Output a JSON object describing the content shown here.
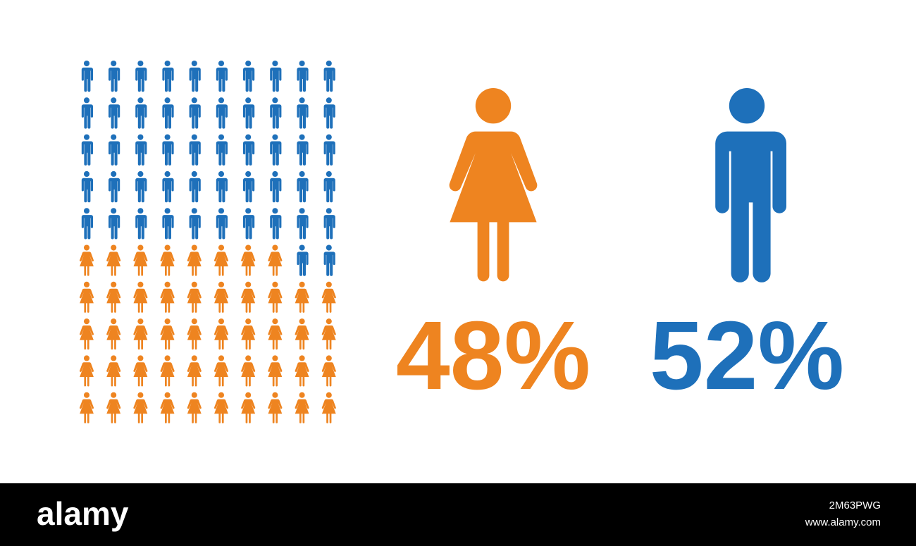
{
  "chart_data": {
    "type": "pictogram",
    "values": [
      48,
      52
    ],
    "value_labels": [
      "48%",
      "52%"
    ],
    "colors": [
      "#ee8420",
      "#1e70ba"
    ]
  },
  "footer": {
    "logo": "alamy",
    "image_id": "2M63PWG",
    "url": "www.alamy.com"
  }
}
